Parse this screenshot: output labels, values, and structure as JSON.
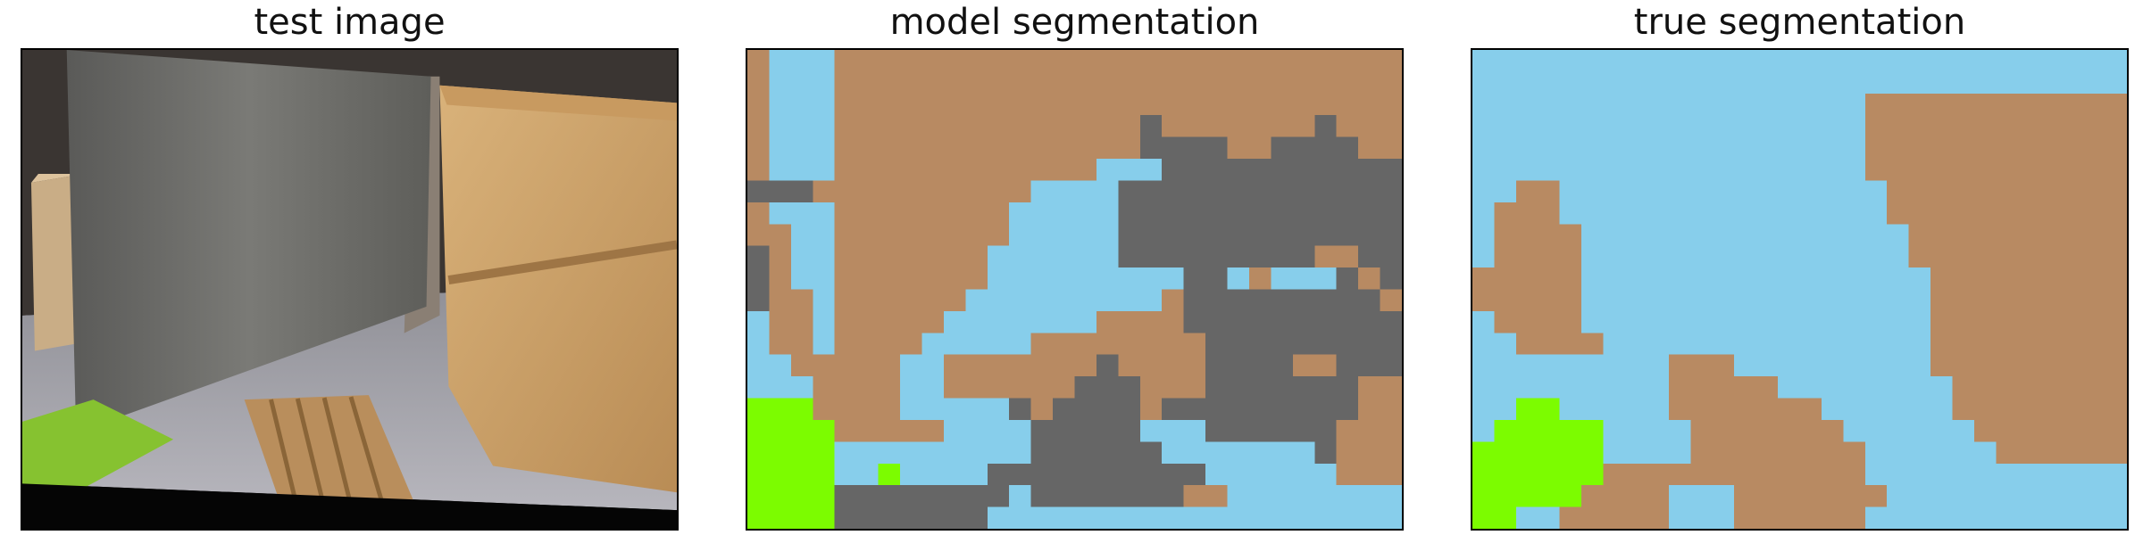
{
  "panels": [
    {
      "title": "test image"
    },
    {
      "title": "model segmentation"
    },
    {
      "title": "true segmentation"
    }
  ],
  "palette": {
    "brown": "#b88a62",
    "sky": "#87ceeb",
    "gray": "#666666",
    "green": "#7cfc00"
  },
  "segmentation": {
    "cols": 30,
    "rows": 22,
    "model": [
      "BSSSBBBBBBBBBBBBBBBBBBBBBBBBBB",
      "BSSSBBBBBBBBBBBBBBBBBBBBBBBBBB",
      "BSSSBBBBBBBBBBBBBBBBBBBBBBBBBB",
      "BSSSBBBBBBBBBBBBBBGBBBBBBBGBBB",
      "BSSSBBBBBBBBBBBBBBGGGGBBGGGGBB",
      "BSSSBBBBBBBBBBBBSSSGGGGGGGGGGG",
      "GGGBBBBBBBBBBSSSSGGGGGGGGGGGGG",
      "BSSSBBBBBBBBSSSSSGGGGGGGGGGGGG",
      "BBSSBBBBBBBBSSSSSGGGGGGGGGGGGG",
      "GBSSBBBBBBBSSSSSSGGGGGGGGGBBGG",
      "GBSSBBBBBBBSSSSSSSSSGGSBSSSGBG",
      "GBBSBBBBBBSSSSSSSSSBGGGGGGGGGB",
      "SBBSBBBBBSSSSSSSBBBBGGGGGGGGGG",
      "SBBSBBBBSSSSSBBBBBBBBGGGGGGGGG",
      "SSBBBBBSSBBBBBBBGBBBBGGGGBBGGG",
      "SSSBBBBSSBBBBBBGGGBBBGGGGGGGBB",
      "NNNBBBBSSSSSGBGGGGBGGGGGGGGGBB",
      "NNNNBBBBBSSSSGGGGGSSSGGGGGGBBB",
      "NNNNSSSSSSSSSGGGGGGSSSSSSSGBBB",
      "NNNNSSNSSSSGGGGGGGGGGSSSSSSBBB",
      "NNNNGGGGGGGGSGGGGGGGBBSSSSSSSS",
      "NNNNGGGGGGGSSSSSSSSSSSSSSSSSSS"
    ],
    "truth": [
      "SSSSSSSSSSSSSSSSSSSSSSSSSSSSSS",
      "SSSSSSSSSSSSSSSSSSSSSSSSSSSSSS",
      "SSSSSSSSSSSSSSSSSSBBBBBBBBBBBB",
      "SSSSSSSSSSSSSSSSSSBBBBBBBBBBBB",
      "SSSSSSSSSSSSSSSSSSBBBBBBBBBBBB",
      "SSSSSSSSSSSSSSSSSSBBBBBBBBBBBB",
      "SSBBSSSSSSSSSSSSSSSBBBBBBBBBBB",
      "SBBBSSSSSSSSSSSSSSSBBBBBBBBBBB",
      "SBBBBSSSSSSSSSSSSSSSBBBBBBBBBB",
      "SBBBBSSSSSSSSSSSSSSSBBBBBBBBBB",
      "BBBBBSSSSSSSSSSSSSSSSBBBBBBBBB",
      "BBBBBSSSSSSSSSSSSSSSSBBBBBBBBB",
      "SBBBBSSSSSSSSSSSSSSSSBBBBBBBBB",
      "SSBBBBSSSSSSSSSSSSSSSBBBBBBBBB",
      "SSSSSSSSSBBBSSSSSSSSSBBBBBBBBB",
      "SSSSSSSSSBBBBBSSSSSSSSBBBBBBBB",
      "SSNNSSSSSBBBBBBBSSSSSSBBBBBBBB",
      "SNNNNNSSSSBBBBBBBSSSSSSBBBBBBB",
      "NNNNNNSSSSBBBBBBBBSSSSSSBBBBBB",
      "NNNNNNBBBBBBBBBBBBSSSSSSSSSSSS",
      "NNNNNBBBBSSSBBBBBBBSSSSSSSSSSS",
      "NNSSBBBBBSSSBBBBBBSSSSSSSSSSSS"
    ]
  }
}
